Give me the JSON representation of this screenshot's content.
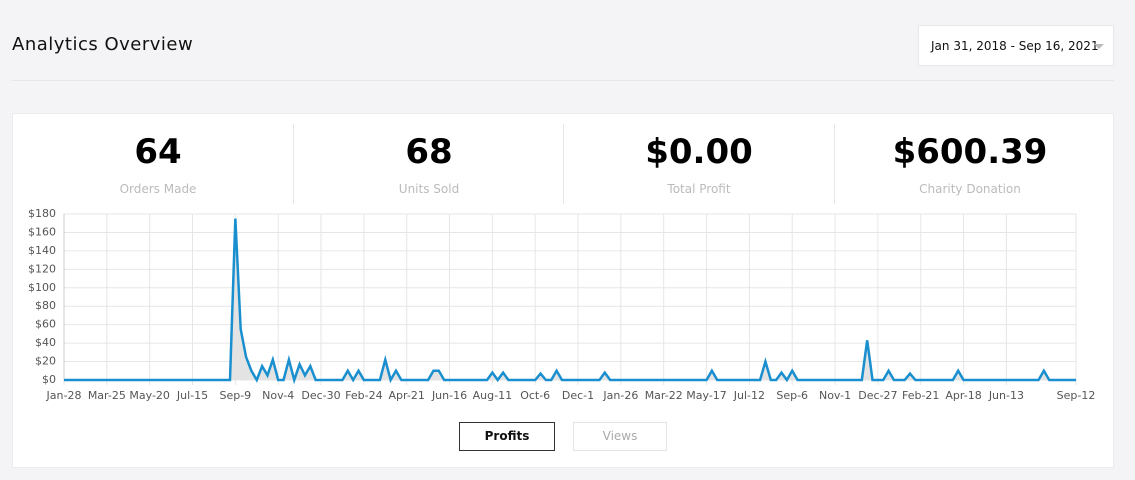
{
  "header": {
    "title": "Analytics Overview",
    "date_range": "Jan 31, 2018 - Sep 16, 2021"
  },
  "stats": [
    {
      "value": "64",
      "label": "Orders Made"
    },
    {
      "value": "68",
      "label": "Units Sold"
    },
    {
      "value": "$0.00",
      "label": "Total Profit"
    },
    {
      "value": "$600.39",
      "label": "Charity Donation"
    }
  ],
  "chart_data": {
    "type": "line",
    "color": "#1a8fcf",
    "fill": "#e3e3e3",
    "grid": true,
    "ylim": [
      0,
      180
    ],
    "yticks": [
      {
        "value": 0,
        "label": "$0"
      },
      {
        "value": 20,
        "label": "$20"
      },
      {
        "value": 40,
        "label": "$40"
      },
      {
        "value": 60,
        "label": "$60"
      },
      {
        "value": 80,
        "label": "$80"
      },
      {
        "value": 100,
        "label": "$100"
      },
      {
        "value": 120,
        "label": "$120"
      },
      {
        "value": 140,
        "label": "$140"
      },
      {
        "value": 160,
        "label": "$160"
      },
      {
        "value": 180,
        "label": "$180"
      }
    ],
    "categories": [
      "Jan-28",
      null,
      null,
      null,
      null,
      null,
      null,
      null,
      "Mar-25",
      null,
      null,
      null,
      null,
      null,
      null,
      null,
      "May-20",
      null,
      null,
      null,
      null,
      null,
      null,
      null,
      "Jul-15",
      null,
      null,
      null,
      null,
      null,
      null,
      null,
      "Sep-9",
      null,
      null,
      null,
      null,
      null,
      null,
      null,
      "Nov-4",
      null,
      null,
      null,
      null,
      null,
      null,
      null,
      "Dec-30",
      null,
      null,
      null,
      null,
      null,
      null,
      null,
      "Feb-24",
      null,
      null,
      null,
      null,
      null,
      null,
      null,
      "Apr-21",
      null,
      null,
      null,
      null,
      null,
      null,
      null,
      "Jun-16",
      null,
      null,
      null,
      null,
      null,
      null,
      null,
      "Aug-11",
      null,
      null,
      null,
      null,
      null,
      null,
      null,
      "Oct-6",
      null,
      null,
      null,
      null,
      null,
      null,
      null,
      "Dec-1",
      null,
      null,
      null,
      null,
      null,
      null,
      null,
      "Jan-26",
      null,
      null,
      null,
      null,
      null,
      null,
      null,
      "Mar-22",
      null,
      null,
      null,
      null,
      null,
      null,
      null,
      "May-17",
      null,
      null,
      null,
      null,
      null,
      null,
      null,
      "Jul-12",
      null,
      null,
      null,
      null,
      null,
      null,
      null,
      "Sep-6",
      null,
      null,
      null,
      null,
      null,
      null,
      null,
      "Nov-1",
      null,
      null,
      null,
      null,
      null,
      null,
      null,
      "Dec-27",
      null,
      null,
      null,
      null,
      null,
      null,
      null,
      "Feb-21",
      null,
      null,
      null,
      null,
      null,
      null,
      null,
      "Apr-18",
      null,
      null,
      null,
      null,
      null,
      null,
      null,
      "Jun-13",
      null,
      null,
      null,
      null,
      null,
      null,
      null,
      null,
      null,
      null,
      null,
      null,
      "Sep-12"
    ],
    "values": [
      0,
      0,
      0,
      0,
      0,
      0,
      0,
      0,
      0,
      0,
      0,
      0,
      0,
      0,
      0,
      0,
      0,
      0,
      0,
      0,
      0,
      0,
      0,
      0,
      0,
      0,
      0,
      0,
      0,
      0,
      0,
      0,
      175,
      55,
      25,
      10,
      0,
      15,
      5,
      22,
      0,
      0,
      22,
      0,
      17,
      5,
      15,
      0,
      0,
      0,
      0,
      0,
      0,
      10,
      0,
      10,
      0,
      0,
      0,
      0,
      22,
      0,
      10,
      0,
      0,
      0,
      0,
      0,
      0,
      10,
      10,
      0,
      0,
      0,
      0,
      0,
      0,
      0,
      0,
      0,
      8,
      0,
      8,
      0,
      0,
      0,
      0,
      0,
      0,
      7,
      0,
      0,
      10,
      0,
      0,
      0,
      0,
      0,
      0,
      0,
      0,
      8,
      0,
      0,
      0,
      0,
      0,
      0,
      0,
      0,
      0,
      0,
      0,
      0,
      0,
      0,
      0,
      0,
      0,
      0,
      0,
      10,
      0,
      0,
      0,
      0,
      0,
      0,
      0,
      0,
      0,
      20,
      0,
      0,
      8,
      0,
      10,
      0,
      0,
      0,
      0,
      0,
      0,
      0,
      0,
      0,
      0,
      0,
      0,
      0,
      43,
      0,
      0,
      0,
      10,
      0,
      0,
      0,
      7,
      0,
      0,
      0,
      0,
      0,
      0,
      0,
      0,
      10,
      0,
      0,
      0,
      0,
      0,
      0,
      0,
      0,
      0,
      0,
      0,
      0,
      0,
      0,
      0,
      10,
      0,
      0,
      0,
      0,
      0,
      0
    ]
  },
  "buttons": [
    "Profits",
    "Views"
  ]
}
